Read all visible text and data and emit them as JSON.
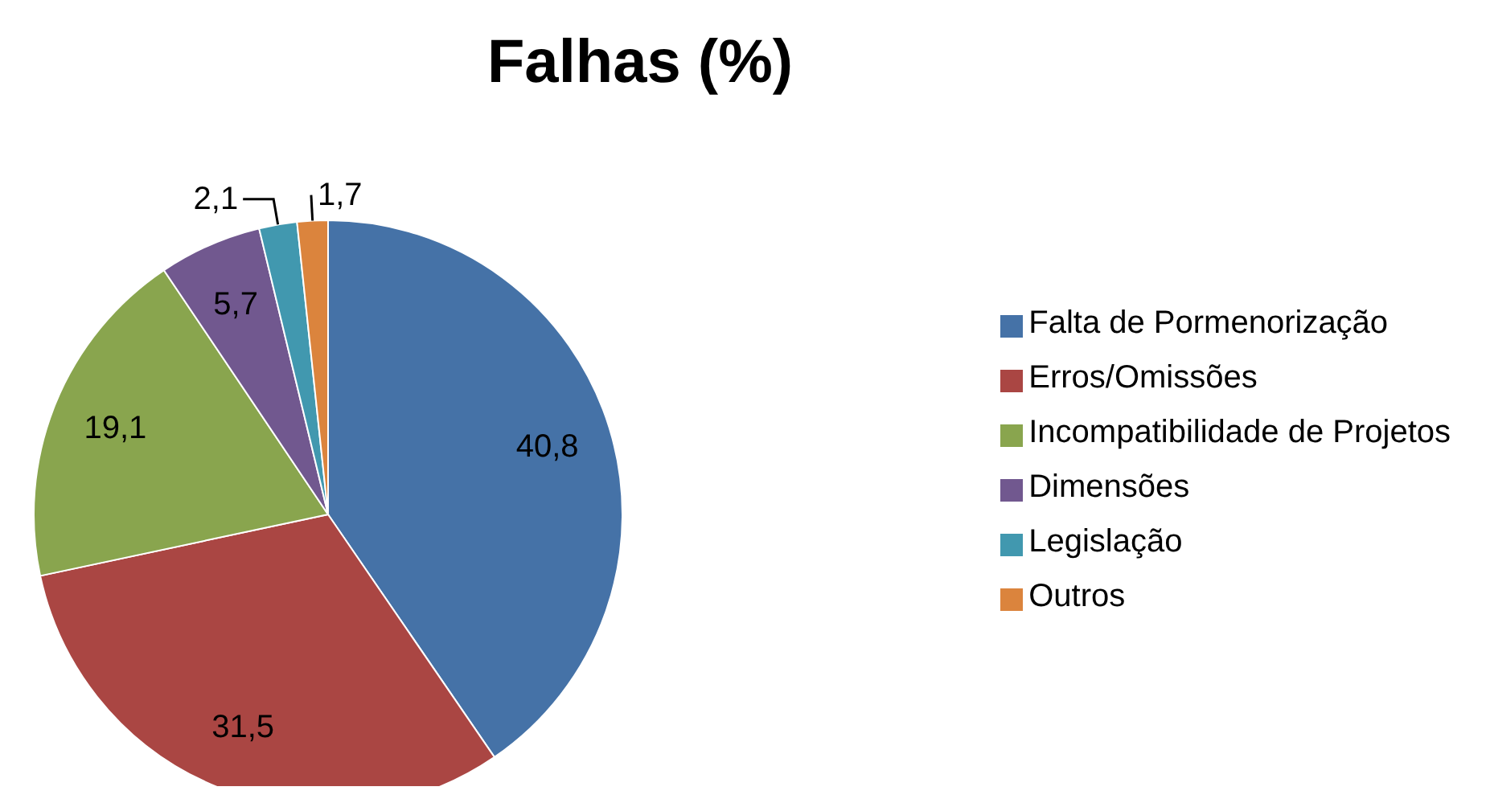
{
  "chart_data": {
    "type": "pie",
    "title": "Falhas (%)",
    "categories": [
      "Falta de Pormenorização",
      "Erros/Omissões",
      "Incompatibilidade de Projetos",
      "Dimensões",
      "Legislação",
      "Outros"
    ],
    "values": [
      40.8,
      31.5,
      19.1,
      5.7,
      2.1,
      1.7
    ],
    "value_labels": [
      "40,8",
      "31,5",
      "19,1",
      "5,7",
      "2,1",
      "1,7"
    ],
    "colors": [
      "#4572a7",
      "#aa4643",
      "#89a54e",
      "#71588f",
      "#4198af",
      "#db843d"
    ],
    "legend": "right"
  }
}
